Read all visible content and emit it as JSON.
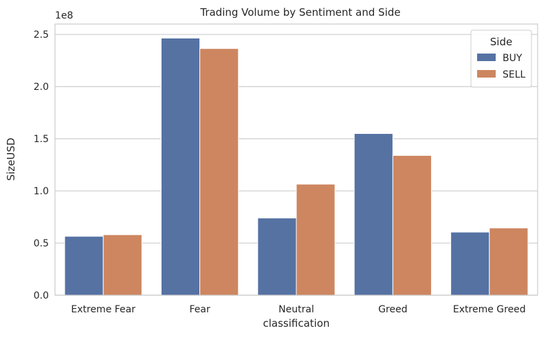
{
  "chart_data": {
    "type": "bar",
    "title": "Trading Volume by Sentiment and Side",
    "xlabel": "classification",
    "ylabel": "SizeUSD",
    "y_offset_label": "1e8",
    "categories": [
      "Extreme Fear",
      "Fear",
      "Neutral",
      "Greed",
      "Extreme Greed"
    ],
    "series": [
      {
        "name": "BUY",
        "color": "#5572a3",
        "values": [
          56500000,
          246500000,
          74000000,
          155000000,
          60500000
        ]
      },
      {
        "name": "SELL",
        "color": "#cd8660",
        "values": [
          58000000,
          236500000,
          106500000,
          134000000,
          64500000
        ]
      }
    ],
    "ylim": [
      0,
      260000000
    ],
    "yticks": [
      0,
      50000000,
      100000000,
      150000000,
      200000000,
      250000000
    ],
    "ytick_labels": [
      "0.0",
      "0.5",
      "1.0",
      "1.5",
      "2.0",
      "2.5"
    ],
    "legend": {
      "title": "Side",
      "placement": "top-right"
    },
    "grid": "horizontal"
  }
}
